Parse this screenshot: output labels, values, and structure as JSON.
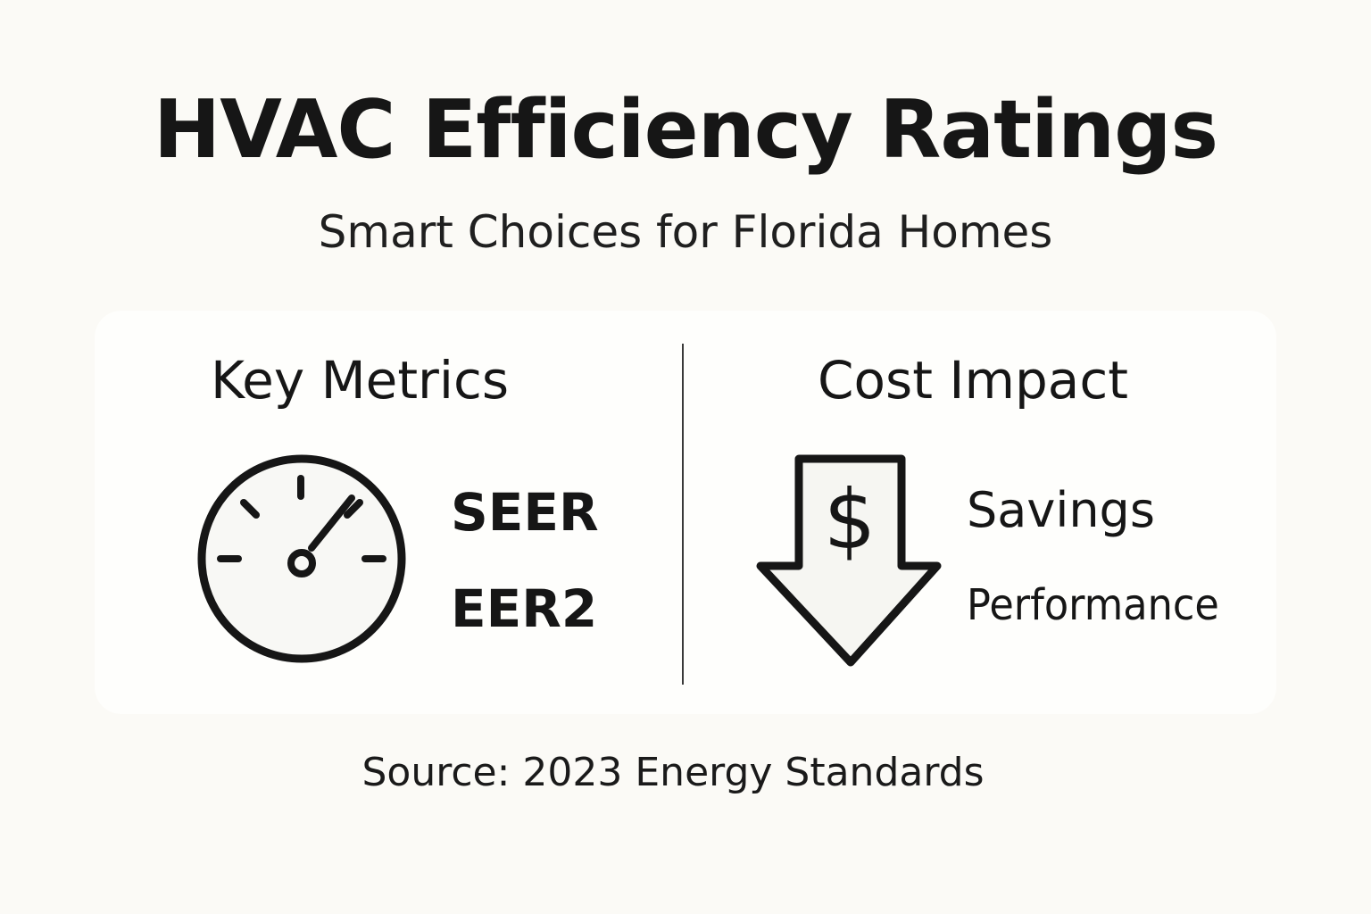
{
  "header": {
    "title": "HVAC Efficiency Ratings",
    "subtitle": "Smart Choices for Florida Homes"
  },
  "key_metrics": {
    "heading": "Key Metrics",
    "icon": "gauge-icon",
    "items": [
      "SEER",
      "EER2"
    ]
  },
  "cost_impact": {
    "heading": "Cost Impact",
    "icon": "dollar-down-arrow-icon",
    "items": [
      "Savings",
      "Performance"
    ]
  },
  "footer": {
    "source": "Source: 2023 Energy Standards"
  },
  "colors": {
    "background": "#fbfaf6",
    "card": "#fefefc",
    "ink": "#161616"
  }
}
